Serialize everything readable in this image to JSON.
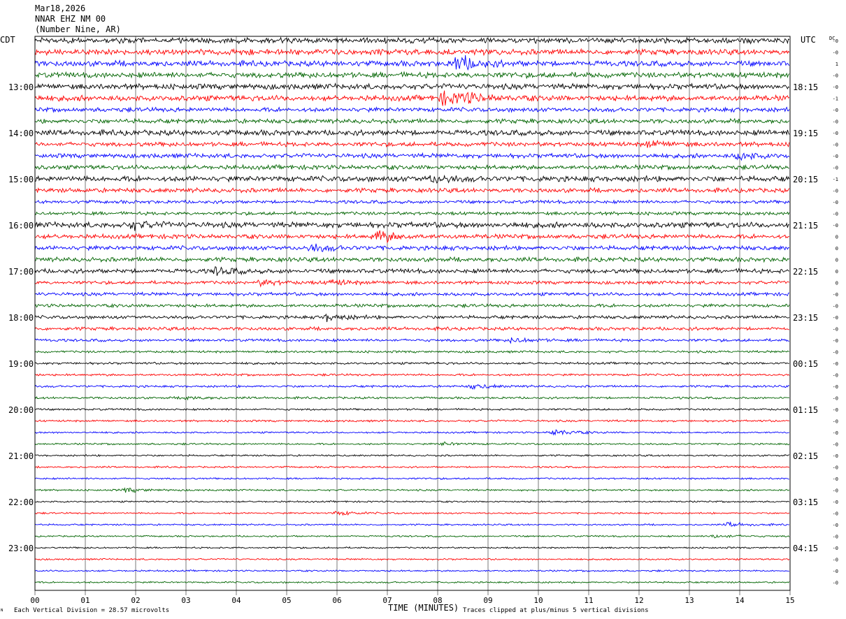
{
  "header": {
    "date": "Mar18,2026",
    "station": "NNAR EHZ NM 00",
    "location": "(Number Nine, AR)"
  },
  "left_axis_title": "CDT",
  "right_axis_title": "UTC",
  "dc_column_title": "DC",
  "xlabel": "TIME (MINUTES)",
  "footer": {
    "vertical_division": "Each Vertical Division =   28.57 microvolts",
    "clipping_note": "Traces clipped at plus/minus 5 vertical divisions",
    "corner_mark": "ᴺ"
  },
  "chart_data": {
    "type": "line",
    "subtype": "helicorder",
    "xlim": [
      0,
      15
    ],
    "x_ticks": [
      "00",
      "01",
      "02",
      "03",
      "04",
      "05",
      "06",
      "07",
      "08",
      "09",
      "10",
      "11",
      "12",
      "13",
      "14",
      "15"
    ],
    "minutes_per_line": 15,
    "line_count": 48,
    "color_cycle": [
      "#000000",
      "#ff0000",
      "#0000ff",
      "#006400"
    ],
    "left_hour_labels": [
      {
        "line": 4,
        "text": "13:00"
      },
      {
        "line": 8,
        "text": "14:00"
      },
      {
        "line": 12,
        "text": "15:00"
      },
      {
        "line": 16,
        "text": "16:00"
      },
      {
        "line": 20,
        "text": "17:00"
      },
      {
        "line": 24,
        "text": "18:00"
      },
      {
        "line": 28,
        "text": "19:00"
      },
      {
        "line": 32,
        "text": "20:00"
      },
      {
        "line": 36,
        "text": "21:00"
      },
      {
        "line": 40,
        "text": "22:00"
      },
      {
        "line": 44,
        "text": "23:00"
      }
    ],
    "right_hour_labels": [
      {
        "line": 4,
        "text": "18:15"
      },
      {
        "line": 8,
        "text": "19:15"
      },
      {
        "line": 12,
        "text": "20:15"
      },
      {
        "line": 16,
        "text": "21:15"
      },
      {
        "line": 20,
        "text": "22:15"
      },
      {
        "line": 24,
        "text": "23:15"
      },
      {
        "line": 28,
        "text": "00:15"
      },
      {
        "line": 32,
        "text": "01:15"
      },
      {
        "line": 36,
        "text": "02:15"
      },
      {
        "line": 40,
        "text": "03:15"
      },
      {
        "line": 44,
        "text": "04:15"
      }
    ],
    "dc_offsets": [
      "-0",
      "-0",
      "1",
      "-0",
      "-0",
      "-1",
      "-0",
      "-0",
      "-0",
      "-0",
      "-0",
      "-0",
      "-1",
      "-0",
      "-0",
      "-0",
      "-0",
      "0",
      "0",
      "0",
      "0",
      "0",
      "-0",
      "-0",
      "-0",
      "-0",
      "-0",
      "-0",
      "-0",
      "-0",
      "-0",
      "-0",
      "-0",
      "-0",
      "-0",
      "-0",
      "-0",
      "-0",
      "-0",
      "-0",
      "-0",
      "-0",
      "-0",
      "-0",
      "-0",
      "-0",
      "-0",
      "-0"
    ],
    "noise_amplitude_per_line": [
      5,
      5,
      5,
      5,
      5,
      5,
      4,
      4,
      5,
      4,
      4,
      4,
      5,
      4,
      3,
      3,
      5,
      4,
      4,
      4,
      4,
      3,
      3,
      3,
      3,
      3,
      2.5,
      2,
      2,
      2,
      2,
      2,
      1.8,
      1.8,
      1.6,
      1.6,
      1.6,
      1.6,
      1.6,
      1.6,
      1.5,
      1.5,
      1.5,
      1.5,
      1.5,
      1.5,
      1.5,
      1.5
    ],
    "events": [
      {
        "line": 2,
        "minute": 8.4,
        "amplitude": 14
      },
      {
        "line": 5,
        "minute": 8.1,
        "amplitude": 10
      },
      {
        "line": 5,
        "minute": 8.5,
        "amplitude": 7
      },
      {
        "line": 17,
        "minute": 6.8,
        "amplitude": 11
      },
      {
        "line": 18,
        "minute": 5.5,
        "amplitude": 6
      },
      {
        "line": 9,
        "minute": 12.2,
        "amplitude": 5
      },
      {
        "line": 10,
        "minute": 14.0,
        "amplitude": 6
      },
      {
        "line": 12,
        "minute": 7.9,
        "amplitude": 6
      },
      {
        "line": 16,
        "minute": 1.9,
        "amplitude": 6
      },
      {
        "line": 20,
        "minute": 3.6,
        "amplitude": 6
      },
      {
        "line": 21,
        "minute": 4.5,
        "amplitude": 5
      },
      {
        "line": 21,
        "minute": 5.9,
        "amplitude": 5
      },
      {
        "line": 24,
        "minute": 5.8,
        "amplitude": 6
      },
      {
        "line": 26,
        "minute": 9.5,
        "amplitude": 4
      },
      {
        "line": 30,
        "minute": 8.7,
        "amplitude": 4
      },
      {
        "line": 31,
        "minute": 3.0,
        "amplitude": 3
      },
      {
        "line": 34,
        "minute": 10.3,
        "amplitude": 6
      },
      {
        "line": 35,
        "minute": 8.1,
        "amplitude": 3
      },
      {
        "line": 39,
        "minute": 1.8,
        "amplitude": 4
      },
      {
        "line": 41,
        "minute": 6.0,
        "amplitude": 4
      },
      {
        "line": 42,
        "minute": 13.8,
        "amplitude": 4
      },
      {
        "line": 43,
        "minute": 13.5,
        "amplitude": 4
      }
    ]
  }
}
